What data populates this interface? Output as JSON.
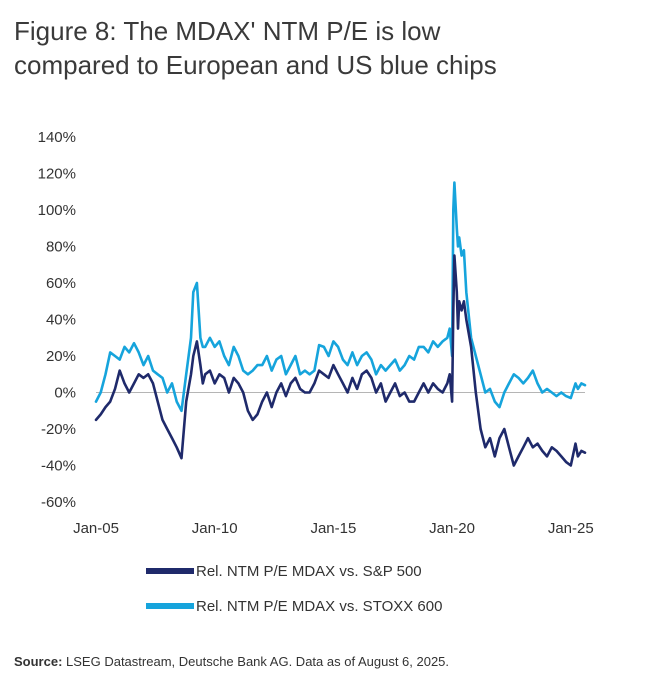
{
  "title_line1": "Figure 8: The MDAX' NTM P/E is low",
  "title_line2": "compared to European and US blue chips",
  "source_label": "Source:",
  "source_text": "LSEG Datastream, Deutsche Bank AG. Data as of August 6, 2025.",
  "colors": {
    "sp500": "#1f2a6b",
    "stoxx": "#16a4dc",
    "axis": "#b5b5b5"
  },
  "chart_data": {
    "type": "line",
    "title": "Figure 8: The MDAX' NTM P/E is low compared to European and US blue chips",
    "xlabel": "",
    "ylabel": "",
    "x_range": [
      2005.0,
      2025.6
    ],
    "ylim": [
      -60,
      140
    ],
    "y_ticks": [
      140,
      120,
      100,
      80,
      60,
      40,
      20,
      0,
      -20,
      -40,
      -60
    ],
    "y_tick_labels": [
      "140%",
      "120%",
      "100%",
      "80%",
      "60%",
      "40%",
      "20%",
      "0%",
      "-20%",
      "-40%",
      "-60%"
    ],
    "x_ticks": [
      2005,
      2010,
      2015,
      2020,
      2025
    ],
    "x_tick_labels": [
      "Jan-05",
      "Jan-10",
      "Jan-15",
      "Jan-20",
      "Jan-25"
    ],
    "legend": "bottom",
    "series": [
      {
        "name": "Rel. NTM P/E MDAX vs. S&P 500",
        "color": "#1f2a6b",
        "x": [
          2005.0,
          2005.2,
          2005.4,
          2005.6,
          2005.8,
          2006.0,
          2006.2,
          2006.4,
          2006.6,
          2006.8,
          2007.0,
          2007.2,
          2007.4,
          2007.6,
          2007.8,
          2008.0,
          2008.2,
          2008.4,
          2008.6,
          2008.8,
          2009.0,
          2009.1,
          2009.25,
          2009.4,
          2009.5,
          2009.6,
          2009.8,
          2010.0,
          2010.2,
          2010.4,
          2010.6,
          2010.8,
          2011.0,
          2011.2,
          2011.4,
          2011.6,
          2011.8,
          2012.0,
          2012.2,
          2012.4,
          2012.6,
          2012.8,
          2013.0,
          2013.2,
          2013.4,
          2013.6,
          2013.8,
          2014.0,
          2014.2,
          2014.4,
          2014.6,
          2014.8,
          2015.0,
          2015.2,
          2015.4,
          2015.6,
          2015.8,
          2016.0,
          2016.2,
          2016.4,
          2016.6,
          2016.8,
          2017.0,
          2017.2,
          2017.4,
          2017.6,
          2017.8,
          2018.0,
          2018.2,
          2018.4,
          2018.6,
          2018.8,
          2019.0,
          2019.2,
          2019.4,
          2019.6,
          2019.8,
          2019.9,
          2020.0,
          2020.05,
          2020.1,
          2020.2,
          2020.25,
          2020.3,
          2020.4,
          2020.5,
          2020.6,
          2020.8,
          2021.0,
          2021.2,
          2021.4,
          2021.6,
          2021.8,
          2022.0,
          2022.2,
          2022.4,
          2022.6,
          2022.8,
          2023.0,
          2023.2,
          2023.4,
          2023.6,
          2023.8,
          2024.0,
          2024.2,
          2024.4,
          2024.6,
          2024.8,
          2025.0,
          2025.2,
          2025.3,
          2025.45,
          2025.6
        ],
        "values": [
          -15,
          -12,
          -8,
          -5,
          2,
          12,
          5,
          0,
          5,
          10,
          8,
          10,
          5,
          -5,
          -15,
          -20,
          -25,
          -30,
          -36,
          -5,
          10,
          20,
          28,
          15,
          5,
          10,
          12,
          5,
          10,
          8,
          0,
          8,
          5,
          0,
          -10,
          -15,
          -12,
          -5,
          0,
          -8,
          0,
          5,
          -2,
          5,
          8,
          2,
          0,
          0,
          5,
          12,
          10,
          8,
          15,
          10,
          5,
          0,
          8,
          2,
          10,
          12,
          8,
          0,
          5,
          -5,
          0,
          5,
          -2,
          0,
          -5,
          -5,
          0,
          5,
          0,
          5,
          2,
          0,
          5,
          10,
          -5,
          45,
          75,
          55,
          35,
          50,
          45,
          50,
          40,
          25,
          0,
          -20,
          -30,
          -25,
          -35,
          -25,
          -20,
          -30,
          -40,
          -35,
          -30,
          -25,
          -30,
          -28,
          -32,
          -35,
          -30,
          -32,
          -35,
          -38,
          -40,
          -28,
          -35,
          -32,
          -33
        ]
      },
      {
        "name": "Rel. NTM P/E MDAX vs. STOXX 600",
        "color": "#16a4dc",
        "x": [
          2005.0,
          2005.2,
          2005.4,
          2005.6,
          2005.8,
          2006.0,
          2006.2,
          2006.4,
          2006.6,
          2006.8,
          2007.0,
          2007.2,
          2007.4,
          2007.6,
          2007.8,
          2008.0,
          2008.2,
          2008.4,
          2008.6,
          2008.8,
          2009.0,
          2009.1,
          2009.25,
          2009.4,
          2009.5,
          2009.6,
          2009.8,
          2010.0,
          2010.2,
          2010.4,
          2010.6,
          2010.8,
          2011.0,
          2011.2,
          2011.4,
          2011.6,
          2011.8,
          2012.0,
          2012.2,
          2012.4,
          2012.6,
          2012.8,
          2013.0,
          2013.2,
          2013.4,
          2013.6,
          2013.8,
          2014.0,
          2014.2,
          2014.4,
          2014.6,
          2014.8,
          2015.0,
          2015.2,
          2015.4,
          2015.6,
          2015.8,
          2016.0,
          2016.2,
          2016.4,
          2016.6,
          2016.8,
          2017.0,
          2017.2,
          2017.4,
          2017.6,
          2017.8,
          2018.0,
          2018.2,
          2018.4,
          2018.6,
          2018.8,
          2019.0,
          2019.2,
          2019.4,
          2019.6,
          2019.8,
          2019.9,
          2020.0,
          2020.05,
          2020.1,
          2020.2,
          2020.25,
          2020.3,
          2020.4,
          2020.5,
          2020.6,
          2020.8,
          2021.0,
          2021.2,
          2021.4,
          2021.6,
          2021.8,
          2022.0,
          2022.2,
          2022.4,
          2022.6,
          2022.8,
          2023.0,
          2023.2,
          2023.4,
          2023.6,
          2023.8,
          2024.0,
          2024.2,
          2024.4,
          2024.6,
          2024.8,
          2025.0,
          2025.2,
          2025.3,
          2025.45,
          2025.6
        ],
        "values": [
          -5,
          0,
          10,
          22,
          20,
          18,
          25,
          22,
          27,
          22,
          15,
          20,
          12,
          10,
          8,
          0,
          5,
          -5,
          -10,
          10,
          30,
          55,
          60,
          30,
          25,
          25,
          30,
          25,
          28,
          20,
          15,
          25,
          20,
          12,
          10,
          12,
          15,
          15,
          20,
          12,
          18,
          20,
          10,
          15,
          20,
          10,
          12,
          10,
          12,
          26,
          25,
          20,
          28,
          25,
          18,
          15,
          22,
          15,
          20,
          22,
          18,
          10,
          15,
          12,
          15,
          18,
          12,
          15,
          20,
          18,
          25,
          25,
          22,
          28,
          25,
          28,
          30,
          35,
          20,
          100,
          115,
          90,
          80,
          85,
          75,
          78,
          55,
          30,
          20,
          10,
          0,
          2,
          -5,
          -8,
          0,
          5,
          10,
          8,
          5,
          8,
          12,
          5,
          0,
          2,
          0,
          -2,
          0,
          -2,
          -3,
          5,
          2,
          5,
          4
        ]
      }
    ]
  }
}
